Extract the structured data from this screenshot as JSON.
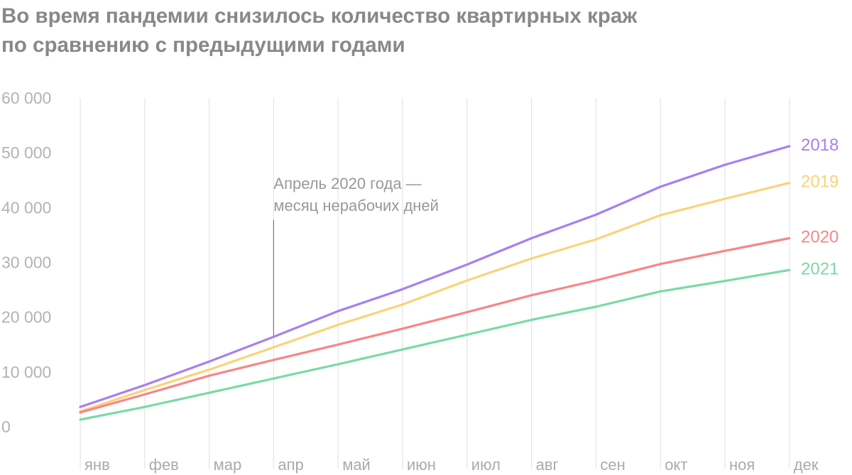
{
  "chart_data": {
    "type": "line",
    "title": "Во время пандемии снизилось количество квартирных краж",
    "subtitle": "по сравнению с предыдущими годами",
    "xlabel": "",
    "ylabel": "",
    "categories": [
      "янв",
      "фев",
      "мар",
      "апр",
      "май",
      "июн",
      "июл",
      "авг",
      "сен",
      "окт",
      "ноя",
      "дек"
    ],
    "ylim": [
      0,
      60000
    ],
    "yticks": [
      0,
      10000,
      20000,
      30000,
      40000,
      50000,
      60000
    ],
    "ytick_labels": [
      "0",
      "10 000",
      "20 000",
      "30 000",
      "40 000",
      "50 000",
      "60 000"
    ],
    "grid": "vertical",
    "legend": "right, at line ends",
    "series": [
      {
        "name": "2018",
        "color": "#a77ff0",
        "values": [
          3600,
          7600,
          11900,
          16400,
          21100,
          25100,
          29600,
          34400,
          38700,
          43800,
          47800,
          51200
        ]
      },
      {
        "name": "2019",
        "color": "#fad37a",
        "values": [
          2800,
          6700,
          10400,
          14500,
          18600,
          22300,
          26700,
          30700,
          34200,
          38600,
          41600,
          44500
        ]
      },
      {
        "name": "2020",
        "color": "#f78686",
        "values": [
          2600,
          5900,
          9300,
          12200,
          15000,
          17900,
          20900,
          24000,
          26700,
          29700,
          32100,
          34400
        ]
      },
      {
        "name": "2021",
        "color": "#7ad9a6",
        "values": [
          1300,
          3600,
          6200,
          8800,
          11400,
          14100,
          16800,
          19500,
          21900,
          24700,
          26600,
          28600
        ]
      }
    ],
    "annotations": [
      {
        "lines": [
          "Апрель 2020 года —",
          "месяц нерабочих дней"
        ],
        "x": "апр",
        "value": 38500
      }
    ]
  }
}
